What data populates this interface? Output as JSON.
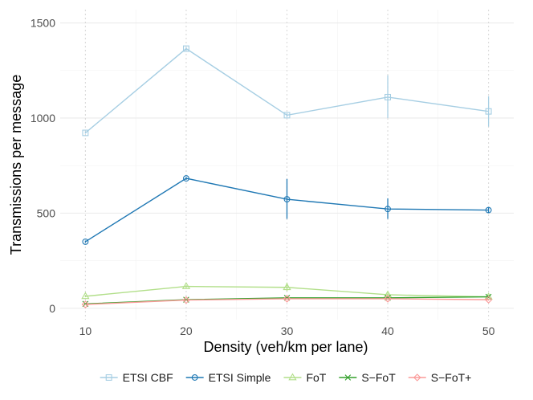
{
  "chart_data": {
    "type": "line",
    "xlabel": "Density (veh/km per lane)",
    "ylabel": "Transmissions per message",
    "x": [
      10,
      20,
      30,
      40,
      50
    ],
    "xlim": [
      7.5,
      52.5
    ],
    "ylim": [
      -60,
      1570
    ],
    "x_ticks": [
      10,
      20,
      30,
      40,
      50
    ],
    "y_ticks": [
      0,
      500,
      1000,
      1500
    ],
    "grid": true,
    "legend_position": "bottom",
    "series": [
      {
        "name": "ETSI CBF",
        "color": "#a6cee3",
        "marker": "square",
        "values": [
          922,
          1365,
          1015,
          1110,
          1035
        ],
        "error": [
          [
            918,
            930
          ],
          [
            1355,
            1372
          ],
          [
            1005,
            1025
          ],
          [
            1000,
            1225
          ],
          [
            955,
            1115
          ]
        ]
      },
      {
        "name": "ETSI Simple",
        "color": "#1f78b4",
        "marker": "circle",
        "values": [
          350,
          683,
          573,
          522,
          516
        ],
        "error": [
          [
            345,
            356
          ],
          [
            675,
            690
          ],
          [
            470,
            680
          ],
          [
            470,
            578
          ],
          [
            500,
            532
          ]
        ]
      },
      {
        "name": "FoT",
        "color": "#b2df8a",
        "marker": "triangle",
        "values": [
          63,
          115,
          110,
          71,
          60
        ],
        "error": [
          [
            58,
            68
          ],
          [
            108,
            122
          ],
          [
            90,
            135
          ],
          [
            63,
            82
          ],
          [
            53,
            68
          ]
        ]
      },
      {
        "name": "S−FoT",
        "color": "#33a02c",
        "marker": "x",
        "values": [
          23,
          45,
          55,
          55,
          60
        ],
        "error": [
          [
            20,
            26
          ],
          [
            41,
            49
          ],
          [
            50,
            60
          ],
          [
            50,
            60
          ],
          [
            55,
            65
          ]
        ]
      },
      {
        "name": "S−FoT+",
        "color": "#fb9a99",
        "marker": "diamond",
        "values": [
          20,
          43,
          50,
          50,
          45
        ],
        "error": [
          [
            17,
            23
          ],
          [
            39,
            47
          ],
          [
            45,
            55
          ],
          [
            45,
            55
          ],
          [
            40,
            50
          ]
        ]
      }
    ]
  }
}
